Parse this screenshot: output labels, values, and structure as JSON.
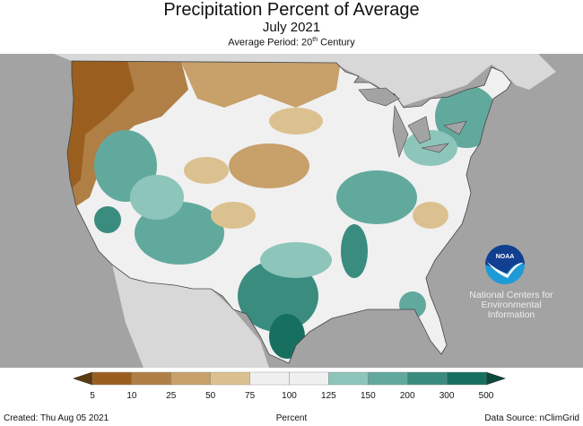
{
  "header": {
    "title": "Precipitation Percent of Average",
    "subtitle": "July 2021",
    "period_prefix": "Average Period: 20",
    "period_sup": "th",
    "period_suffix": " Century"
  },
  "logo": {
    "text": "NOAA",
    "org_line1": "National Centers for",
    "org_line2": "Environmental",
    "org_line3": "Information"
  },
  "legend": {
    "ticks": [
      "5",
      "10",
      "25",
      "50",
      "75",
      "100",
      "125",
      "150",
      "200",
      "300",
      "500"
    ],
    "colors": [
      "#9a5f1f",
      "#b07f45",
      "#c7a06a",
      "#dcc190",
      "#f0f0f0",
      "#f0f0f0",
      "#8dc5bb",
      "#62a99d",
      "#3a8c7f",
      "#17705f"
    ],
    "below_color": "#5c3a0f",
    "above_color": "#0b4b3f",
    "label": "Percent"
  },
  "footer": {
    "created": "Created: Thu Aug 05 2021",
    "source": "Data Source: nClimGrid"
  }
}
